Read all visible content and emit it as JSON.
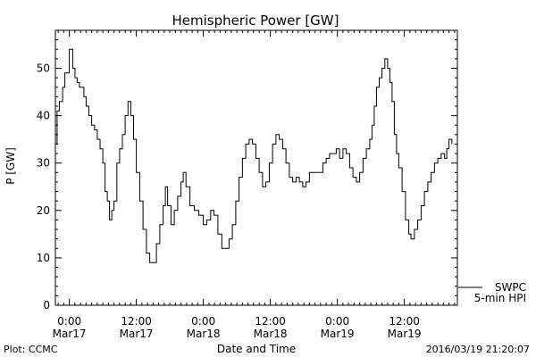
{
  "chart_data": {
    "type": "line",
    "title": "Hemispheric Power [GW]",
    "xlabel": "Date and Time",
    "ylabel": "P [GW]",
    "ylim": [
      0,
      58
    ],
    "y_ticks": [
      0,
      10,
      20,
      30,
      40,
      50
    ],
    "x_range_hours": [
      -2.5,
      69.5
    ],
    "x_ticks": [
      {
        "hour": 0,
        "line1": "0:00",
        "line2": "Mar17"
      },
      {
        "hour": 12,
        "line1": "12:00",
        "line2": "Mar17"
      },
      {
        "hour": 24,
        "line1": "0:00",
        "line2": "Mar18"
      },
      {
        "hour": 36,
        "line1": "12:00",
        "line2": "Mar18"
      },
      {
        "hour": 48,
        "line1": "0:00",
        "line2": "Mar19"
      },
      {
        "hour": 60,
        "line1": "12:00",
        "line2": "Mar19"
      }
    ],
    "series": [
      {
        "name": "SWPC",
        "name2": "5-min HPI",
        "color": "#000000",
        "points": [
          [
            -2.5,
            34
          ],
          [
            -2.2,
            41
          ],
          [
            -1.8,
            43
          ],
          [
            -1.2,
            46
          ],
          [
            -0.8,
            49
          ],
          [
            -0.4,
            49
          ],
          [
            0.0,
            54
          ],
          [
            0.3,
            54
          ],
          [
            0.6,
            50
          ],
          [
            1.0,
            48
          ],
          [
            1.4,
            47
          ],
          [
            1.8,
            46
          ],
          [
            2.2,
            46
          ],
          [
            2.6,
            44
          ],
          [
            3.0,
            42
          ],
          [
            3.5,
            40
          ],
          [
            4.0,
            38
          ],
          [
            4.5,
            37
          ],
          [
            5.0,
            35
          ],
          [
            5.5,
            33
          ],
          [
            6.0,
            30
          ],
          [
            6.4,
            24
          ],
          [
            6.8,
            22
          ],
          [
            7.2,
            18
          ],
          [
            7.6,
            20
          ],
          [
            8.0,
            22
          ],
          [
            8.5,
            30
          ],
          [
            9.0,
            33
          ],
          [
            9.5,
            36
          ],
          [
            10.0,
            40
          ],
          [
            10.5,
            43
          ],
          [
            11.0,
            40
          ],
          [
            11.5,
            35
          ],
          [
            12.0,
            28
          ],
          [
            12.6,
            22
          ],
          [
            13.2,
            16
          ],
          [
            13.8,
            11
          ],
          [
            14.4,
            9
          ],
          [
            15.0,
            9
          ],
          [
            15.6,
            13
          ],
          [
            16.2,
            17
          ],
          [
            16.8,
            21
          ],
          [
            17.2,
            25
          ],
          [
            17.6,
            21
          ],
          [
            18.2,
            17
          ],
          [
            18.8,
            20
          ],
          [
            19.4,
            23
          ],
          [
            20.0,
            26
          ],
          [
            20.4,
            28
          ],
          [
            20.9,
            25
          ],
          [
            21.6,
            21
          ],
          [
            22.4,
            20
          ],
          [
            23.2,
            19
          ],
          [
            24.0,
            17
          ],
          [
            24.6,
            18
          ],
          [
            25.3,
            20
          ],
          [
            25.9,
            19
          ],
          [
            26.6,
            15
          ],
          [
            27.3,
            12
          ],
          [
            28.0,
            12
          ],
          [
            28.6,
            14
          ],
          [
            29.2,
            17
          ],
          [
            29.8,
            22
          ],
          [
            30.4,
            27
          ],
          [
            31.0,
            31
          ],
          [
            31.6,
            34
          ],
          [
            32.2,
            35
          ],
          [
            32.8,
            34
          ],
          [
            33.4,
            31
          ],
          [
            34.0,
            28
          ],
          [
            34.6,
            25
          ],
          [
            35.2,
            26
          ],
          [
            35.8,
            30
          ],
          [
            36.4,
            34
          ],
          [
            37.0,
            36
          ],
          [
            37.6,
            35
          ],
          [
            38.2,
            33
          ],
          [
            38.8,
            30
          ],
          [
            39.4,
            27
          ],
          [
            40.0,
            26
          ],
          [
            40.6,
            27
          ],
          [
            41.2,
            26
          ],
          [
            41.8,
            25
          ],
          [
            42.4,
            26
          ],
          [
            43.0,
            28
          ],
          [
            43.6,
            28
          ],
          [
            44.2,
            28
          ],
          [
            44.8,
            28
          ],
          [
            45.4,
            30
          ],
          [
            46.0,
            31
          ],
          [
            46.6,
            32
          ],
          [
            47.2,
            32
          ],
          [
            47.8,
            33
          ],
          [
            48.4,
            31
          ],
          [
            49.0,
            33
          ],
          [
            49.6,
            32
          ],
          [
            50.2,
            29
          ],
          [
            50.8,
            27
          ],
          [
            51.4,
            26
          ],
          [
            52.0,
            28
          ],
          [
            52.6,
            31
          ],
          [
            53.2,
            33
          ],
          [
            53.8,
            35
          ],
          [
            54.2,
            38
          ],
          [
            54.6,
            42
          ],
          [
            55.0,
            46
          ],
          [
            55.5,
            48
          ],
          [
            56.0,
            50
          ],
          [
            56.5,
            52
          ],
          [
            57.0,
            50
          ],
          [
            57.4,
            47
          ],
          [
            57.8,
            43
          ],
          [
            58.2,
            36
          ],
          [
            58.6,
            32
          ],
          [
            59.0,
            29
          ],
          [
            59.6,
            24
          ],
          [
            60.2,
            18
          ],
          [
            60.8,
            15
          ],
          [
            61.2,
            14
          ],
          [
            61.8,
            16
          ],
          [
            62.4,
            18
          ],
          [
            63.0,
            21
          ],
          [
            63.6,
            24
          ],
          [
            64.2,
            26
          ],
          [
            64.8,
            28
          ],
          [
            65.4,
            30
          ],
          [
            66.0,
            31
          ],
          [
            66.6,
            32
          ],
          [
            67.2,
            31
          ],
          [
            67.6,
            33
          ],
          [
            68.0,
            35
          ],
          [
            68.5,
            34
          ]
        ]
      }
    ]
  },
  "footer": {
    "left": "Plot: CCMC",
    "right": "2016/03/19 21:20:07"
  }
}
